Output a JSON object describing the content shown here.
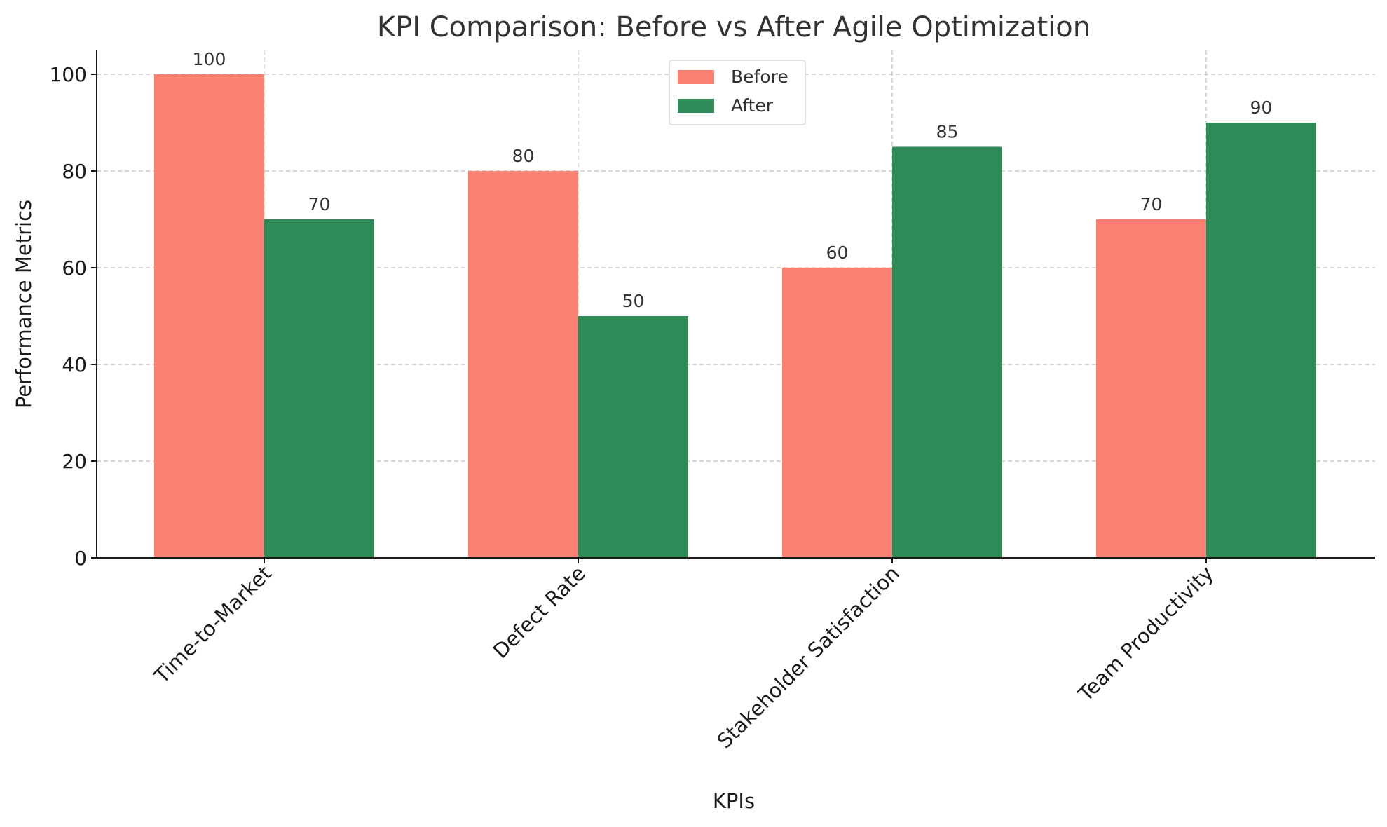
{
  "chart_data": {
    "type": "bar",
    "title": "KPI Comparison: Before vs After Agile Optimization",
    "xlabel": "KPIs",
    "ylabel": "Performance Metrics",
    "categories": [
      "Time-to-Market",
      "Defect Rate",
      "Stakeholder Satisfaction",
      "Team Productivity"
    ],
    "series": [
      {
        "name": "Before",
        "values": [
          100,
          80,
          60,
          70
        ],
        "color": "#fa8072"
      },
      {
        "name": "After",
        "values": [
          70,
          50,
          85,
          90
        ],
        "color": "#2e8b57"
      }
    ],
    "ylim": [
      0,
      105
    ],
    "yticks": [
      0,
      20,
      40,
      60,
      80,
      100
    ],
    "grid": true,
    "grid_style": "dashed",
    "legend_position": "top-center",
    "category_label_rotation": "45deg"
  }
}
